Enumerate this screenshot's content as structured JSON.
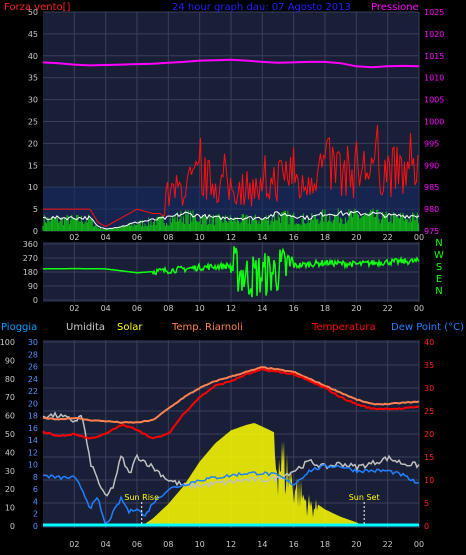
{
  "colors": {
    "background": "#000000",
    "plot_bg": "#1a1f38",
    "grid": "#3a3f5a",
    "axis_text": "#c8c8c8",
    "wind_red": "#ff1010",
    "wind_white": "#ffffff",
    "wind_green": "#10c010",
    "pressure": "#ff00ff",
    "direction": "#10ff10",
    "humidity": "#c0c0c0",
    "solar": "#ffff00",
    "temp_ramoli": "#ff8050",
    "temperature": "#ff0000",
    "dew_point": "#2080ff",
    "rain": "#00ffff",
    "title": "#2020ff",
    "pioggia_label": "#00a0ff",
    "temp_axis": "#ff2020",
    "rain_axis": "#5090ff"
  },
  "chart_data": [
    {
      "type": "line",
      "title": "24 hour graph dau: 07 Agosto 2013",
      "left_label": "Forza vento[]",
      "right_label": "Pressione",
      "x_ticks": [
        "02",
        "04",
        "06",
        "08",
        "10",
        "12",
        "14",
        "16",
        "18",
        "20",
        "22",
        "00"
      ],
      "y_left_ticks": [
        0,
        5,
        10,
        15,
        20,
        25,
        30,
        35,
        40,
        45,
        50
      ],
      "y_left_range": [
        0,
        50
      ],
      "y_right_ticks": [
        975,
        980,
        985,
        990,
        995,
        1000,
        1005,
        1010,
        1015,
        1020,
        1025
      ],
      "y_right_range": [
        975,
        1025
      ],
      "series": [
        {
          "key": "pressure",
          "x": [
            0,
            1,
            2,
            3,
            4,
            5,
            6,
            7,
            8,
            9,
            10,
            11,
            12,
            13,
            14,
            15,
            16,
            17,
            18,
            19,
            20,
            21,
            22,
            23,
            24
          ],
          "values": [
            1013.5,
            1013.3,
            1013,
            1012.8,
            1012.9,
            1013,
            1013.1,
            1013.2,
            1013.4,
            1013.6,
            1013.9,
            1014,
            1014.1,
            1013.9,
            1013.6,
            1013.4,
            1013.5,
            1013.6,
            1013.6,
            1013.3,
            1012.6,
            1012.4,
            1012.6,
            1012.7,
            1012.6
          ]
        },
        {
          "key": "gust",
          "x": [
            0,
            1,
            2,
            3,
            3.5,
            4,
            4.5,
            5,
            6,
            7,
            7.5,
            8,
            9,
            10,
            11,
            12,
            13,
            14,
            15,
            16,
            16.5,
            17,
            18,
            19,
            20,
            21,
            22,
            23,
            24
          ],
          "values": [
            5,
            5,
            5,
            5,
            2,
            1,
            2,
            3,
            5,
            4,
            4,
            8,
            10,
            12,
            11,
            10,
            10,
            9,
            12,
            14,
            9,
            13,
            15,
            14,
            13,
            15,
            14,
            13,
            12
          ]
        },
        {
          "key": "avg",
          "x": [
            0,
            1,
            2,
            3,
            3.5,
            4,
            5,
            6,
            7,
            8,
            9,
            10,
            11,
            12,
            13,
            14,
            15,
            16,
            17,
            18,
            19,
            20,
            21,
            22,
            23,
            24
          ],
          "values": [
            3,
            3,
            3,
            3,
            1,
            0.5,
            1,
            2,
            2.5,
            3,
            4,
            3.5,
            3,
            3,
            3,
            3,
            4,
            3.5,
            3,
            4,
            4,
            4,
            4,
            3.5,
            3.5,
            3.5
          ]
        }
      ]
    },
    {
      "type": "line",
      "x_ticks": [
        "02",
        "04",
        "06",
        "08",
        "10",
        "12",
        "14",
        "16",
        "18",
        "20",
        "22",
        "00"
      ],
      "y_ticks": [
        0,
        90,
        180,
        270,
        360
      ],
      "y_range": [
        0,
        360
      ],
      "direction_labels": [
        "N",
        "W",
        "S",
        "E",
        "N"
      ],
      "series": [
        {
          "key": "direction",
          "x": [
            0,
            2,
            4,
            6,
            8,
            10,
            12,
            13,
            14,
            15,
            16,
            18,
            20,
            22,
            24
          ],
          "values": [
            200,
            202,
            200,
            175,
            190,
            210,
            220,
            150,
            160,
            190,
            220,
            240,
            230,
            245,
            250
          ]
        }
      ]
    },
    {
      "type": "line",
      "x_ticks": [
        "02",
        "04",
        "06",
        "08",
        "10",
        "12",
        "14",
        "16",
        "18",
        "20",
        "22",
        "00"
      ],
      "legend": [
        "Pioggia",
        "Umidita",
        "Solar",
        "Temp. Riarnoli",
        "Temperatura",
        "Dew Point (°C)"
      ],
      "y_rain_ticks": [
        0,
        10,
        20,
        30,
        40,
        50,
        60,
        70,
        80,
        90,
        100
      ],
      "y_humidity_ticks": [
        0,
        2,
        4,
        6,
        8,
        10,
        12,
        14,
        16,
        18,
        20,
        22,
        24,
        26,
        28,
        30
      ],
      "y_temp_ticks": [
        0,
        5,
        10,
        15,
        20,
        25,
        30,
        35,
        40
      ],
      "y_temp_range": [
        0,
        40
      ],
      "y_hum_range": [
        0,
        100
      ],
      "annotations": [
        "Sun Rise",
        "Sun Set"
      ],
      "sunrise_hour": 6.3,
      "sunset_hour": 20.5,
      "series": [
        {
          "key": "humidity",
          "x": [
            0,
            1,
            2,
            2.5,
            3,
            3.5,
            4,
            4.5,
            5,
            5.5,
            6,
            7,
            8,
            9,
            10,
            11,
            12,
            13,
            14,
            15,
            16,
            17,
            18,
            19,
            20,
            21,
            22,
            23,
            24
          ],
          "values": [
            60,
            60,
            57,
            60,
            35,
            25,
            15,
            22,
            38,
            28,
            38,
            32,
            25,
            22,
            22,
            23,
            24,
            25,
            25,
            26,
            30,
            35,
            32,
            34,
            32,
            34,
            37,
            34,
            33
          ]
        },
        {
          "key": "temp_ramoli",
          "x": [
            0,
            1,
            2,
            3,
            4,
            5,
            6,
            7,
            8,
            9,
            10,
            11,
            12,
            13,
            14,
            15,
            16,
            17,
            18,
            19,
            20,
            21,
            22,
            23,
            24
          ],
          "values": [
            23.5,
            23.2,
            23.5,
            23,
            22.8,
            22.5,
            22.5,
            23,
            25.5,
            28,
            30,
            31.5,
            32.5,
            33.5,
            34.5,
            34,
            33.5,
            32,
            30.5,
            29,
            27.5,
            26.5,
            26.5,
            26.8,
            27
          ]
        },
        {
          "key": "temperature",
          "x": [
            0,
            1,
            2,
            3,
            4,
            5,
            6,
            7,
            8,
            9,
            10,
            11,
            12,
            13,
            14,
            15,
            16,
            17,
            18,
            19,
            20,
            21,
            22,
            23,
            24
          ],
          "values": [
            20.5,
            19.5,
            20,
            19,
            20,
            22,
            21,
            19,
            20,
            24.5,
            28,
            30.5,
            31.5,
            33,
            34,
            33.5,
            33,
            31.5,
            30,
            28,
            26.5,
            25.5,
            25.5,
            25.5,
            26
          ]
        },
        {
          "key": "dew_point",
          "x": [
            0,
            1,
            2,
            2.5,
            3,
            3.5,
            4,
            4.5,
            5,
            5.5,
            6,
            6.5,
            7,
            8,
            9,
            10,
            11,
            12,
            13,
            14,
            15,
            16,
            17,
            18,
            19,
            20,
            21,
            22,
            23,
            24
          ],
          "values": [
            11,
            10.5,
            10.5,
            8,
            4,
            6,
            0,
            3,
            6,
            3,
            4,
            2,
            5,
            8,
            9,
            10,
            10.5,
            11,
            11.5,
            11.5,
            11,
            9,
            12,
            13,
            13,
            12,
            12,
            12,
            11,
            9
          ]
        },
        {
          "key": "solar_rel",
          "x": [
            0,
            6.3,
            7,
            8,
            9,
            10,
            11,
            12,
            13,
            13.5,
            14,
            14.5,
            15,
            15.5,
            16,
            16.5,
            17,
            18,
            19,
            20,
            20.5,
            24
          ],
          "values": [
            0,
            0,
            4,
            12,
            22,
            35,
            45,
            52,
            55,
            56,
            54,
            52,
            50,
            40,
            30,
            22,
            15,
            9,
            5,
            2,
            0,
            0
          ]
        },
        {
          "key": "rain",
          "x": [
            0,
            24
          ],
          "values": [
            0,
            0
          ]
        }
      ]
    }
  ]
}
